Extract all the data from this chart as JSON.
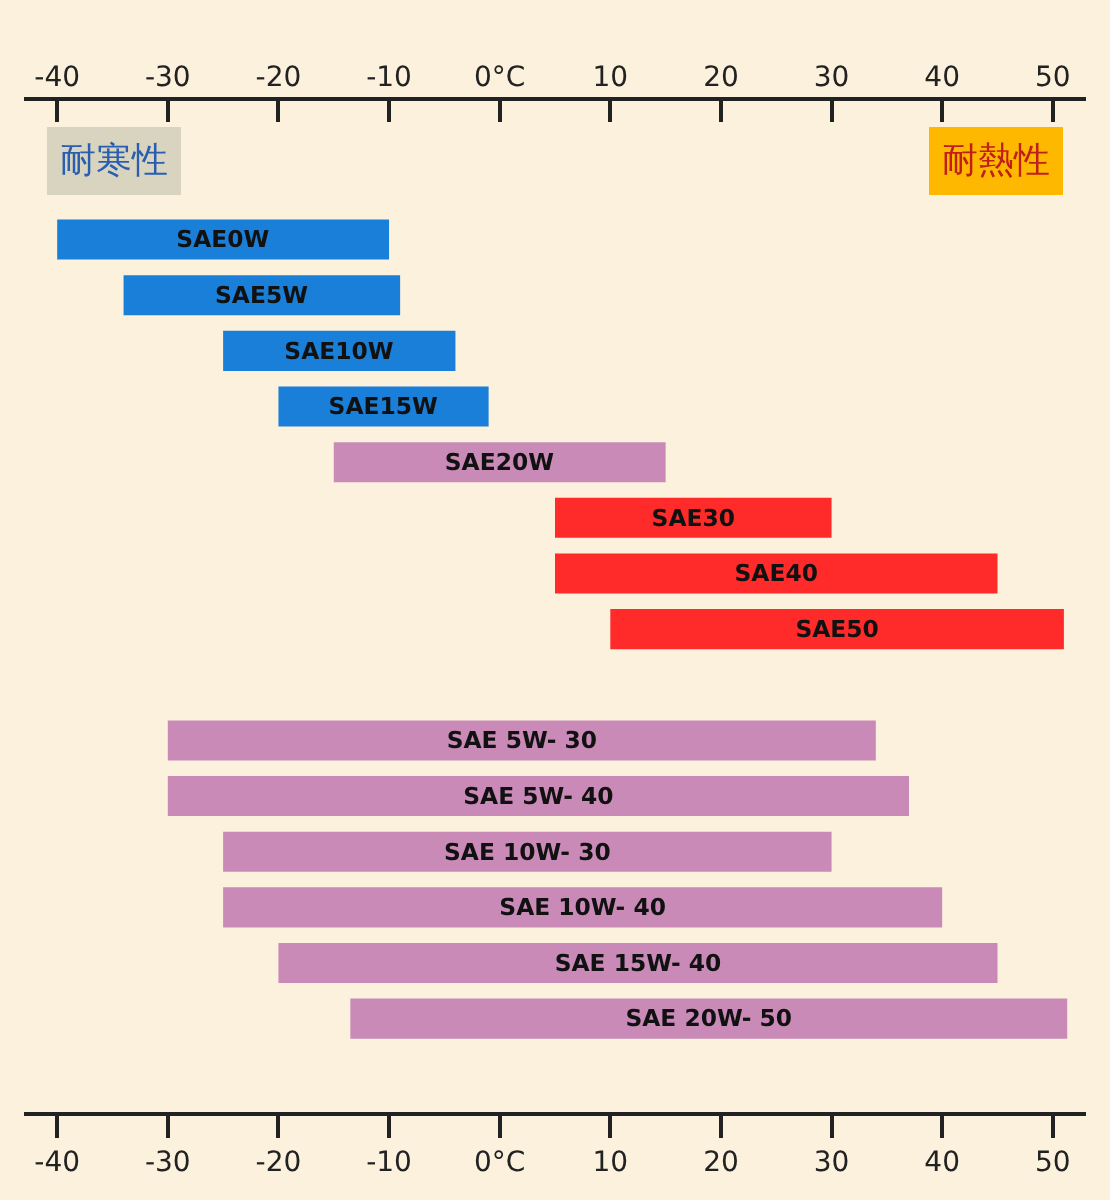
{
  "chart_data": {
    "type": "bar",
    "orientation": "horizontal",
    "tick_labels": "x",
    "data_labels": false,
    "categories": [
      "SAE0W",
      "SAE5W",
      "SAE10W",
      "SAE15W",
      "SAE20W",
      "SAE30",
      "SAE40",
      "SAE50",
      null,
      "SAE 5W- 30",
      "SAE 5W- 40",
      "SAE 10W- 30",
      "SAE 10W- 40",
      "SAE 15W- 40",
      "SAE 20W- 50"
    ],
    "base": [
      -40,
      -34,
      -25,
      -20,
      -15,
      5,
      5,
      10,
      null,
      -30,
      -30,
      -25,
      -25,
      -20,
      -13.5
    ],
    "values": [
      30,
      25,
      21,
      19,
      30,
      25,
      40,
      41,
      null,
      64,
      67,
      55,
      65,
      65,
      64.8
    ],
    "colors": [
      "#1a7fd8",
      "#1a7fd8",
      "#1a7fd8",
      "#1a7fd8",
      "#c98ab8",
      "#ff2a2a",
      "#ff2a2a",
      "#ff2a2a",
      null,
      "#c98ab8",
      "#c98ab8",
      "#c98ab8",
      "#c98ab8",
      "#c98ab8",
      "#c98ab8"
    ],
    "annotations": [
      "耐寒性",
      "耐熱性"
    ],
    "xlim": [
      -43,
      53
    ],
    "xticks": [
      -40,
      -30,
      -20,
      -10,
      {
        "value": 0,
        "label": "0°C"
      },
      10,
      20,
      30,
      40,
      50
    ],
    "x2lim": [
      -43,
      53
    ],
    "x2ticks": [
      -40,
      -30,
      -20,
      -10,
      {
        "value": 0,
        "label": "0°C"
      },
      10,
      20,
      30,
      40,
      50
    ],
    "grid": false,
    "legend": false
  }
}
